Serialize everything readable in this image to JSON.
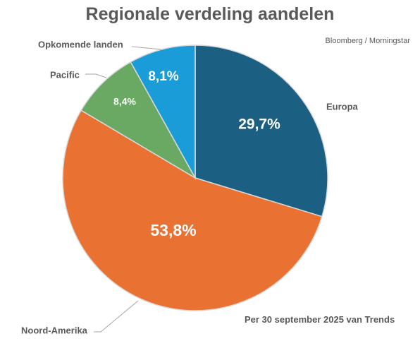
{
  "chart_data": {
    "type": "pie",
    "title": "Regionale verdeling aandelen",
    "subtitle": "Bloomberg / Morningstar",
    "footnote": "Per 30 september 2025 van Trends",
    "slices": [
      {
        "label": "Europa",
        "value": 29.7,
        "value_label": "29,7%",
        "color": "#1b5f83"
      },
      {
        "label": "Noord-Amerika",
        "value": 53.8,
        "value_label": "53,8%",
        "color": "#e97132"
      },
      {
        "label": "Pacific",
        "value": 8.4,
        "value_label": "8,4%",
        "color": "#6aa964"
      },
      {
        "label": "Opkomende landen",
        "value": 8.1,
        "value_label": "8,1%",
        "color": "#1a9cd8"
      }
    ],
    "start_angle": "12 o'clock",
    "direction": "clockwise",
    "legend": "none"
  }
}
